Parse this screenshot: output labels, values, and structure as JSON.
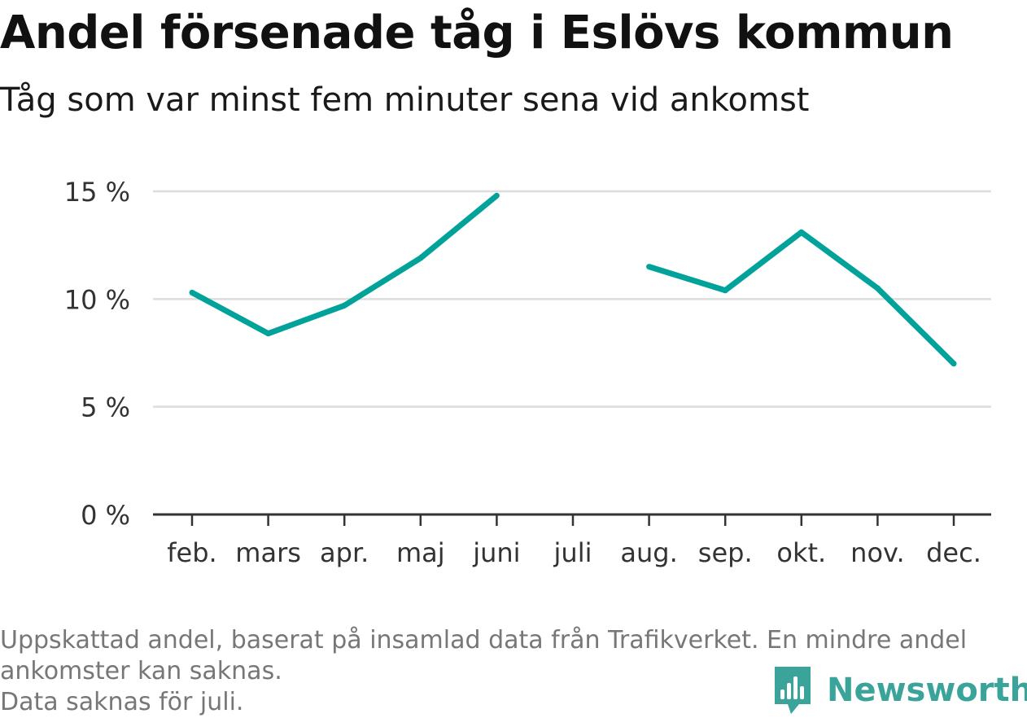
{
  "title": "Andel försenade tåg i Eslövs kommun",
  "subtitle": "Tåg som var minst fem minuter sena vid ankomst",
  "footnote": {
    "line1": "Uppskattad andel, baserat på insamlad data från Trafikverket. En mindre andel",
    "line2": "ankomster kan saknas.",
    "line3": "Data saknas för juli."
  },
  "brand": {
    "name": "Newsworthy",
    "icon": "bar-chart-speech-bubble-icon",
    "color": "#3aa39a"
  },
  "chart_data": {
    "type": "line",
    "categories": [
      "feb.",
      "mars",
      "apr.",
      "maj",
      "juni",
      "juli",
      "aug.",
      "sep.",
      "okt.",
      "nov.",
      "dec."
    ],
    "series": [
      {
        "color": "#00a29a",
        "values": [
          10.3,
          8.4,
          9.7,
          11.9,
          14.8,
          null,
          11.5,
          10.4,
          13.1,
          10.5,
          7.0
        ]
      }
    ],
    "yticks": [
      {
        "value": 0,
        "label": "0 %"
      },
      {
        "value": 5,
        "label": "5 %"
      },
      {
        "value": 10,
        "label": "10 %"
      },
      {
        "value": 15,
        "label": "15 %"
      }
    ],
    "ylim": [
      0,
      15
    ],
    "grid": true,
    "xlabel": "",
    "ylabel": ""
  }
}
